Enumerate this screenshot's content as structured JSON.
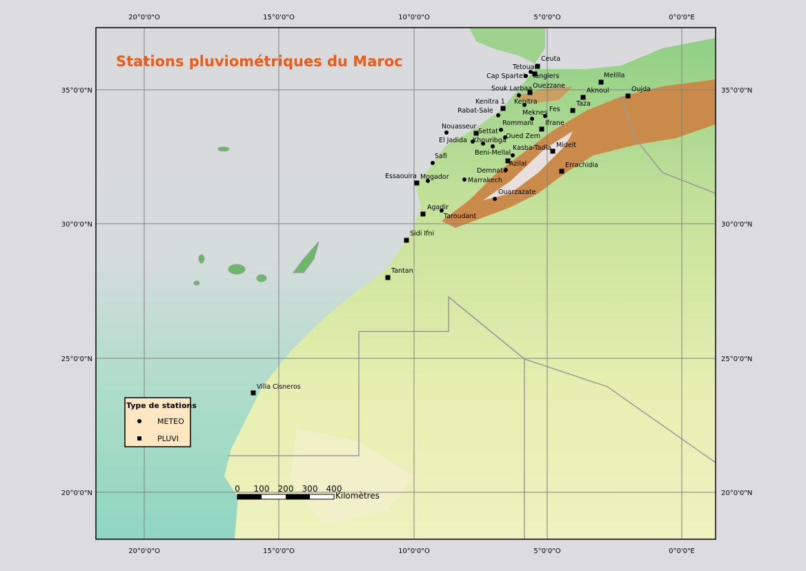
{
  "title": "Stations pluviométriques du Maroc",
  "graticule": {
    "longitudes": [
      "20°0'0\"O",
      "15°0'0\"O",
      "10°0'0\"O",
      "5°0'0\"O",
      "0°0'0\"E"
    ],
    "latitudes": [
      "35°0'0\"N",
      "30°0'0\"N",
      "25°0'0\"N",
      "20°0'0\"N"
    ]
  },
  "stations": [
    "Ceuta",
    "Tetouan",
    "Cap Spartel",
    "Tangiers",
    "Melilla",
    "Souk Larbaa",
    "Ouezzane",
    "Aknoul",
    "Oujda",
    "Kenitra 1",
    "Kenitra",
    "Rabat-Sale",
    "Meknes",
    "Fes",
    "Taza",
    "Nouasseur",
    "Rommani",
    "Ifrane",
    "Settat",
    "El Jadida",
    "Khouribga",
    "Oued Zem",
    "Midelt",
    "Beni-Mellal",
    "Kasba-Tadla",
    "Safi",
    "Azilal",
    "Errachidia",
    "Demnate",
    "Essaouira",
    "Mogador",
    "Marrakech",
    "Ouarzazate",
    "Agadir",
    "Taroudant",
    "Sidi Ifni",
    "Tantan",
    "Villa Cisneros"
  ],
  "legend": {
    "title": "Type de stations",
    "items": [
      "METEO",
      "PLUVI"
    ]
  },
  "scale_bar": {
    "ticks": [
      0,
      100,
      200,
      300,
      400
    ],
    "unit": "Kilomètres"
  }
}
